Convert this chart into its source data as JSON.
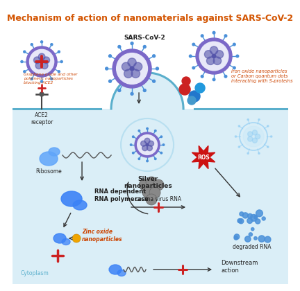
{
  "title": "Mechanism of action of nanomaterials against SARS-CoV-2",
  "title_color": "#d35400",
  "title_fontsize": 9.0,
  "bg_color": "#ffffff",
  "cell_bg": "#daeef7",
  "cell_line_color": "#5aafcc",
  "labels": {
    "sars": "SARS-CoV-2",
    "ace2": "ACE2\nreceptor",
    "graphene": "Graphene oxide and other\npolymeric nanoparticles\nblocking ACE2",
    "iron": "Iron oxide nanoparticles\nor Carbon quantum dots\ninteracting with S-proteins",
    "ribosome": "Ribosome",
    "rna_pol": "RNA dependent\nRNA polymerase",
    "zinc": "Zinc oxide\nnanoparticles",
    "silver": "Silver\nnanoparticles",
    "ros": "ROS",
    "corona_rna": "corona virus RNA",
    "degraded": "degraded RNA",
    "downstream": "Downstream\naction",
    "cytoplasm": "Cytoplasm"
  },
  "colors": {
    "virus_border": "#7b68c8",
    "virus_spike": "#4a90d9",
    "virus_inner": "#dbeafe",
    "virus_pattern": "#5555aa",
    "red_cross": "#cc2222",
    "arrow": "#333333",
    "ribosome": "#60a5fa",
    "rna_pol": "#3b82f6",
    "zinc_particle": "#f0a500",
    "silver_particle": "#888888",
    "ros_star": "#cc1111",
    "degraded_dots": "#4a90d9",
    "label_orange": "#cc4400",
    "label_black": "#222222",
    "label_blue": "#5aafcc"
  }
}
